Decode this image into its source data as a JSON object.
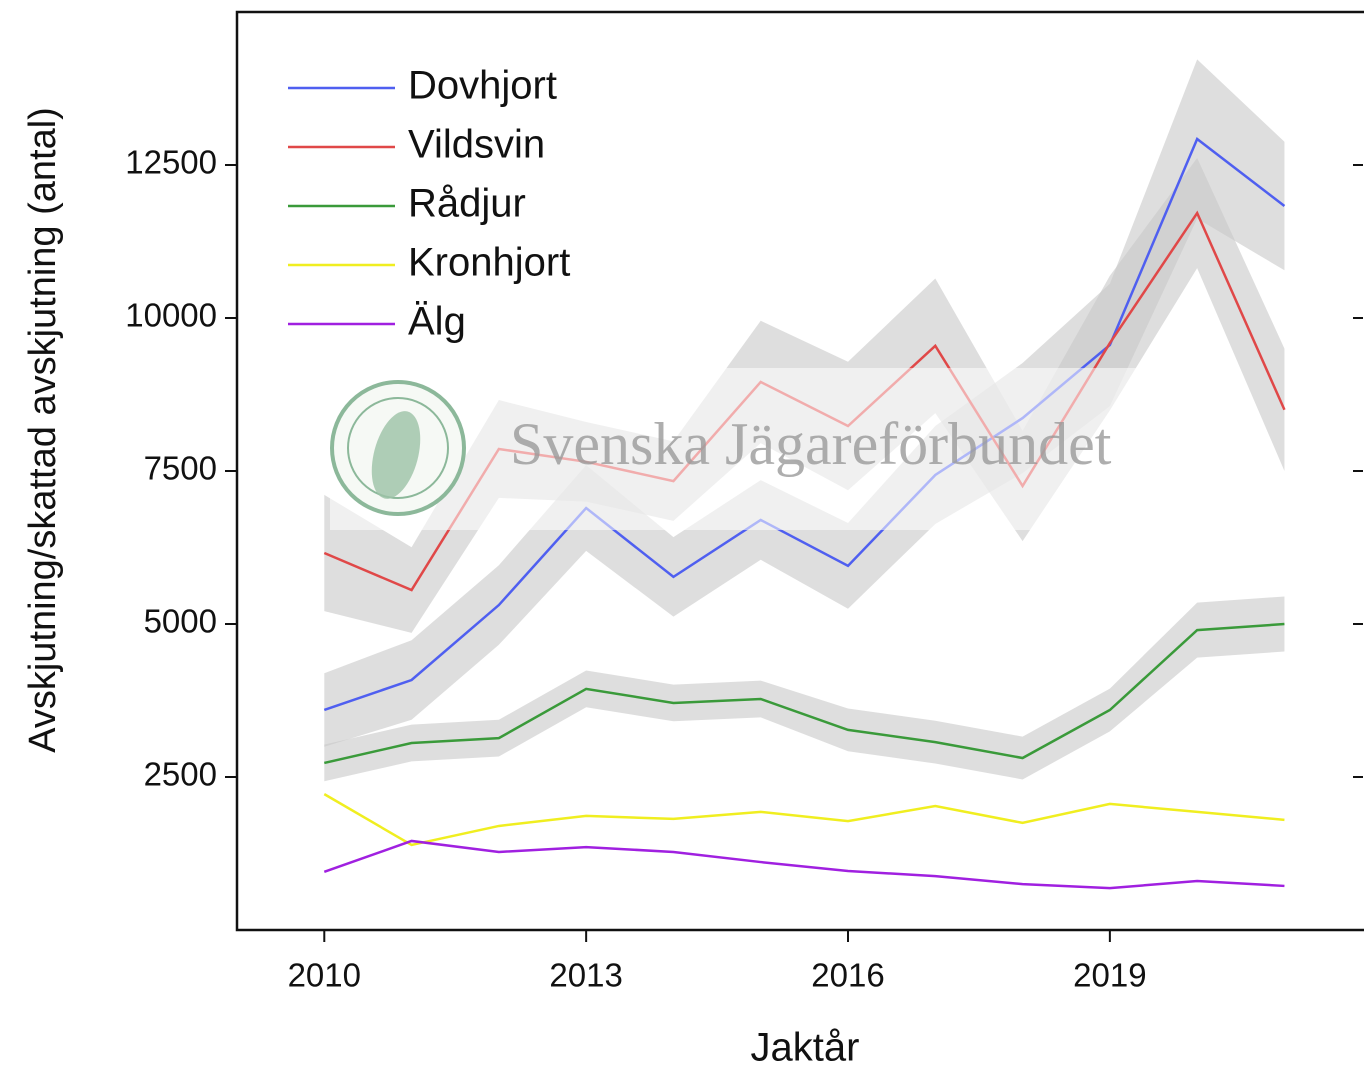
{
  "chart_data": {
    "type": "line",
    "x_label": "Jaktår",
    "y_label": "Avskjutning/skattad avskjutning (antal)",
    "watermark": "Svenska Jägareförbundet",
    "x": [
      2010,
      2011,
      2012,
      2013,
      2014,
      2015,
      2016,
      2017,
      2018,
      2019,
      2020,
      2021
    ],
    "xlim": [
      2009,
      2021.9
    ],
    "xticks": [
      2010,
      2013,
      2016,
      2019
    ],
    "ylim": [
      0,
      15000
    ],
    "yticks": [
      2500,
      5000,
      7500,
      10000,
      12500
    ],
    "band_color": "#c8c8c8",
    "legend": "upper-left",
    "series": [
      {
        "name": "Dovhjort",
        "color": "#4f5ff0",
        "values": [
          3595,
          4085,
          5310,
          6895,
          5770,
          6700,
          5950,
          7435,
          8365,
          9560,
          12925,
          11830
        ],
        "lower": [
          2995,
          3435,
          4660,
          6195,
          5120,
          6050,
          5250,
          6635,
          7465,
          8560,
          11625,
          10780
        ],
        "upper": [
          4195,
          4735,
          5960,
          7595,
          6420,
          7350,
          6650,
          8235,
          9265,
          10560,
          14225,
          12880
        ]
      },
      {
        "name": "Vildsvin",
        "color": "#e04848",
        "values": [
          6160,
          5555,
          7860,
          7650,
          7335,
          8955,
          8235,
          9545,
          7255,
          9590,
          11715,
          8500
        ],
        "lower": [
          5210,
          4855,
          7060,
          7000,
          6685,
          7955,
          7185,
          8445,
          6355,
          8490,
          10815,
          7500
        ],
        "upper": [
          7110,
          6255,
          8660,
          8300,
          7985,
          9955,
          9285,
          10645,
          8155,
          10690,
          12615,
          9500
        ]
      },
      {
        "name": "Rådjur",
        "color": "#3a9a3a",
        "values": [
          2730,
          3055,
          3135,
          3940,
          3710,
          3775,
          3270,
          3070,
          2810,
          3595,
          4900,
          5000
        ],
        "lower": [
          2430,
          2755,
          2835,
          3640,
          3410,
          3475,
          2920,
          2720,
          2460,
          3245,
          4450,
          4550
        ],
        "upper": [
          3030,
          3355,
          3435,
          4240,
          4010,
          4075,
          3620,
          3420,
          3160,
          3945,
          5350,
          5450
        ]
      },
      {
        "name": "Kronhjort",
        "color": "#f0ee20",
        "values": [
          2220,
          1390,
          1700,
          1865,
          1815,
          1930,
          1780,
          2025,
          1750,
          2060,
          1930,
          1800
        ]
      },
      {
        "name": "Älg",
        "color": "#a020e0",
        "values": [
          950,
          1455,
          1275,
          1355,
          1275,
          1110,
          965,
          880,
          750,
          685,
          800,
          720
        ]
      }
    ]
  }
}
